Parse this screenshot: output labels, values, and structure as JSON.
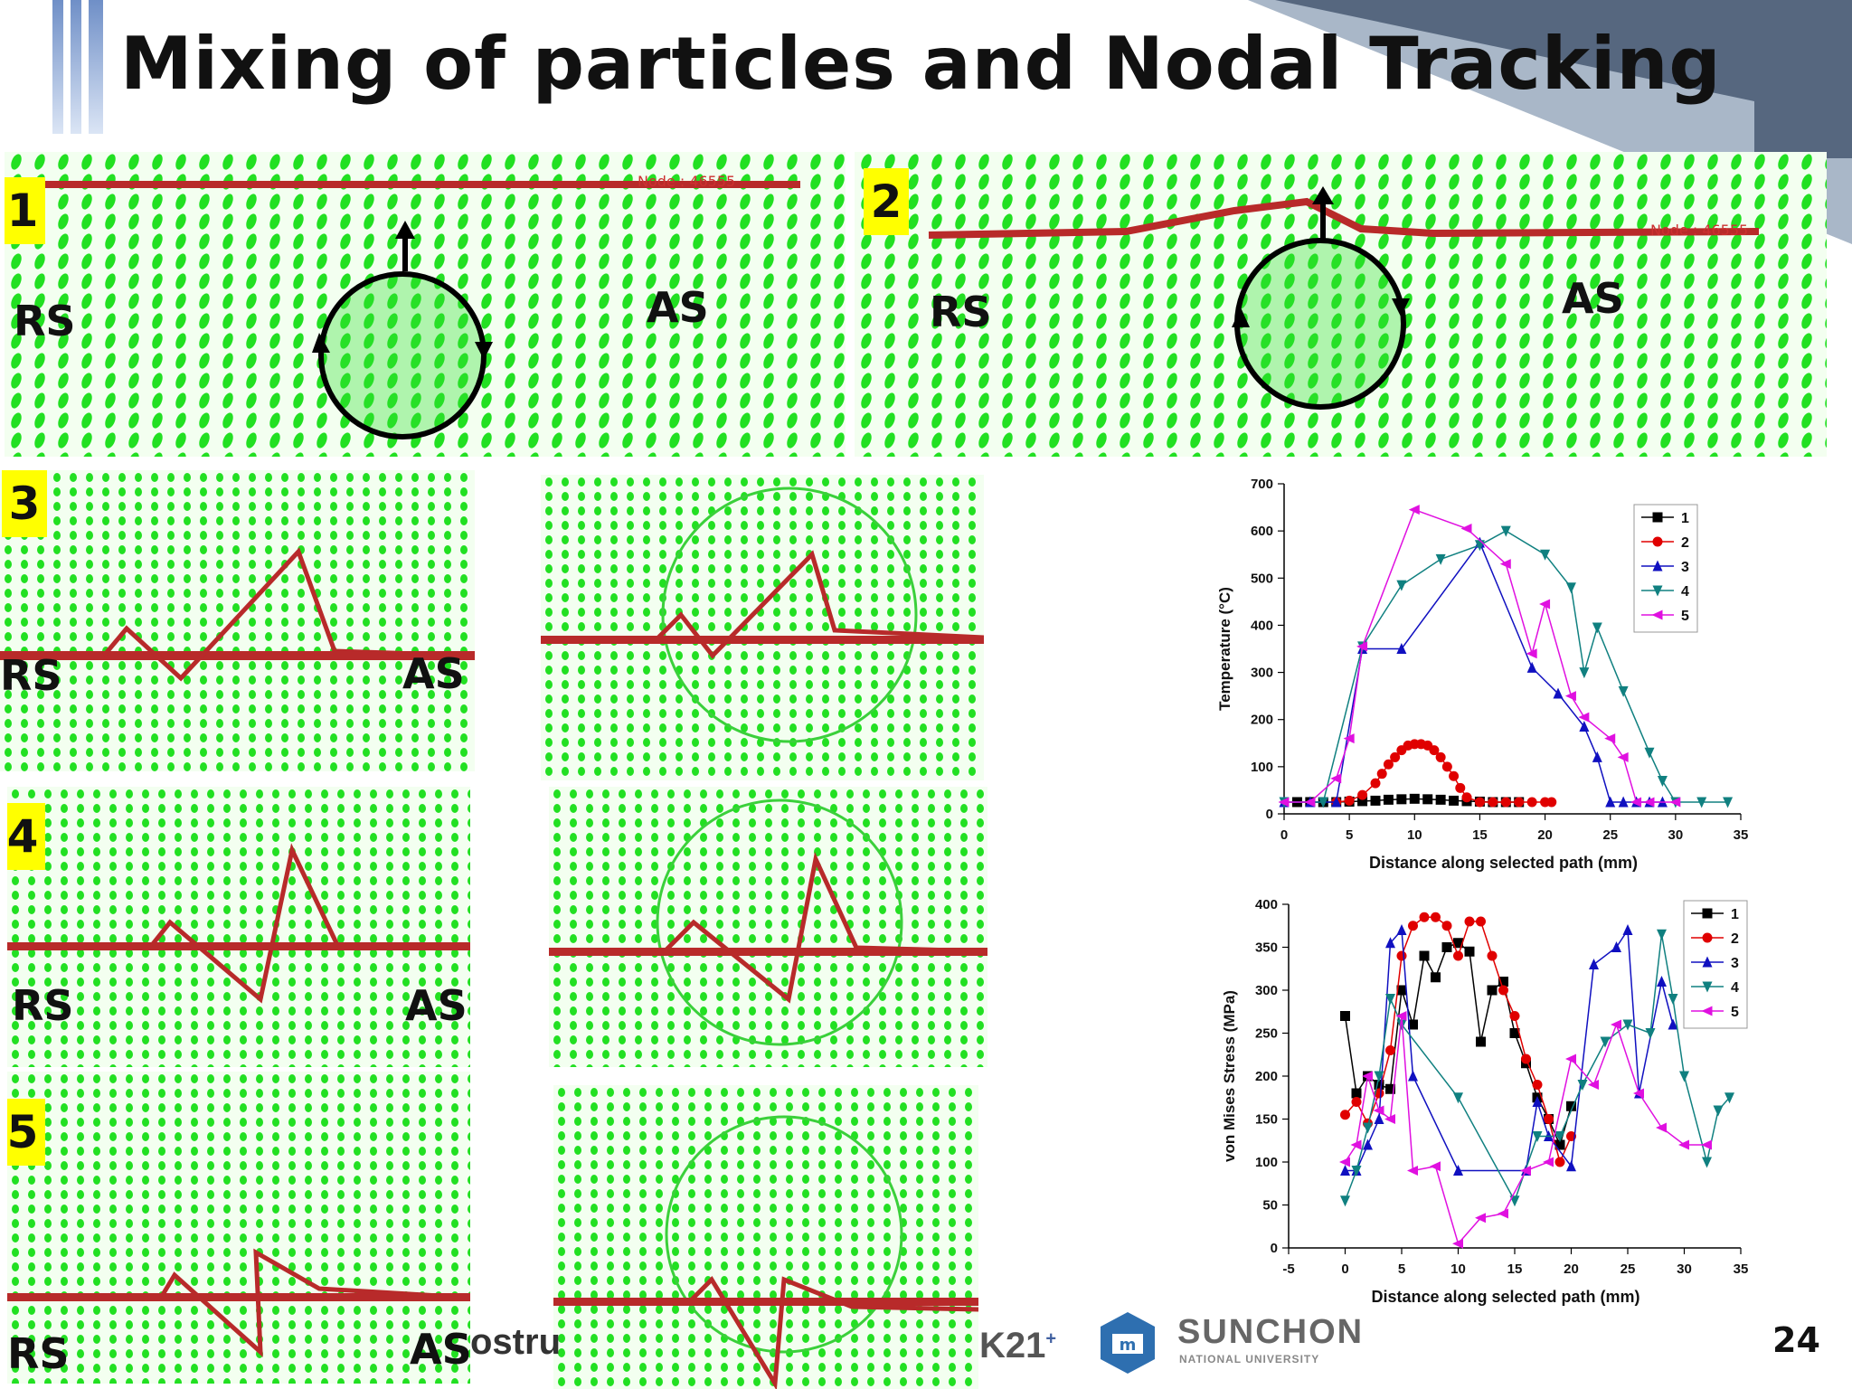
{
  "slide": {
    "title": "Mixing of particles and Nodal Tracking",
    "page_number": "24"
  },
  "panels": {
    "p1": {
      "badge": "1",
      "rs": "RS",
      "as": "AS",
      "node_text": "Node : 46555"
    },
    "p2": {
      "badge": "2",
      "rs": "RS",
      "as": "AS",
      "node_text": "Node : 46555"
    },
    "p3": {
      "badge": "3",
      "rs": "RS",
      "as": "AS"
    },
    "p4": {
      "badge": "4",
      "rs": "RS",
      "as": "AS"
    },
    "p5": {
      "badge": "5",
      "rs": "RS",
      "as": "AS"
    }
  },
  "footer": {
    "partial_text": "ostru",
    "bk21": "K21",
    "univ_name": "SUNCHON",
    "univ_sub": "NATIONAL UNIVERSITY"
  },
  "chart_data": [
    {
      "type": "line",
      "xlabel": "Distance along selected path (mm)",
      "ylabel": "Temperature (°C)",
      "xlim": [
        0,
        35
      ],
      "ylim": [
        0,
        700
      ],
      "xticks": [
        0,
        5,
        10,
        15,
        20,
        25,
        30,
        35
      ],
      "yticks": [
        0,
        100,
        200,
        300,
        400,
        500,
        600,
        700
      ],
      "legend_position": "top-right",
      "series": [
        {
          "name": "1",
          "color": "#000000",
          "marker": "square",
          "x": [
            1,
            2,
            3,
            4,
            5,
            6,
            7,
            8,
            9,
            10,
            11,
            12,
            13,
            14,
            15,
            16,
            17,
            18
          ],
          "y": [
            25,
            25,
            25,
            25,
            26,
            27,
            28,
            30,
            31,
            32,
            31,
            30,
            28,
            27,
            26,
            25,
            25,
            25
          ]
        },
        {
          "name": "2",
          "color": "#e00000",
          "marker": "circle",
          "x": [
            4,
            5,
            6,
            7,
            7.5,
            8,
            8.5,
            9,
            9.5,
            10,
            10.5,
            11,
            11.5,
            12,
            12.5,
            13,
            13.5,
            14,
            15,
            16,
            17,
            18,
            19,
            20,
            20.5
          ],
          "y": [
            25,
            28,
            40,
            65,
            85,
            105,
            120,
            135,
            145,
            148,
            148,
            145,
            135,
            120,
            100,
            80,
            55,
            35,
            25,
            25,
            25,
            25,
            25,
            25,
            25
          ]
        },
        {
          "name": "3",
          "color": "#1010c0",
          "marker": "triangle-up",
          "x": [
            0,
            2,
            4,
            6,
            9,
            15,
            19,
            21,
            23,
            24,
            25,
            26,
            27,
            28,
            29
          ],
          "y": [
            25,
            25,
            25,
            350,
            350,
            575,
            310,
            255,
            185,
            120,
            25,
            25,
            25,
            25,
            25
          ]
        },
        {
          "name": "4",
          "color": "#108080",
          "marker": "triangle-down",
          "x": [
            0,
            3,
            6,
            9,
            12,
            15,
            17,
            20,
            22,
            23,
            24,
            26,
            28,
            29,
            30,
            32,
            34
          ],
          "y": [
            25,
            25,
            355,
            485,
            540,
            570,
            600,
            550,
            480,
            300,
            395,
            260,
            130,
            70,
            25,
            25,
            25
          ]
        },
        {
          "name": "5",
          "color": "#e010e0",
          "marker": "triangle-left",
          "x": [
            0,
            2,
            4,
            5,
            6,
            10,
            14,
            17,
            19,
            20,
            22,
            23,
            25,
            26,
            27,
            28,
            30
          ],
          "y": [
            25,
            25,
            75,
            160,
            355,
            645,
            605,
            530,
            340,
            445,
            250,
            205,
            160,
            120,
            25,
            25,
            25
          ]
        }
      ]
    },
    {
      "type": "line",
      "xlabel": "Distance along selected path (mm)",
      "ylabel": "von Mises Stress (MPa)",
      "xlim": [
        -5,
        35
      ],
      "ylim": [
        0,
        400
      ],
      "xticks": [
        -5,
        0,
        5,
        10,
        15,
        20,
        25,
        30,
        35
      ],
      "yticks": [
        0,
        50,
        100,
        150,
        200,
        250,
        300,
        350,
        400
      ],
      "legend_position": "top-right",
      "series": [
        {
          "name": "1",
          "color": "#000000",
          "marker": "square",
          "x": [
            0,
            1,
            2,
            3,
            4,
            5,
            6,
            7,
            8,
            9,
            10,
            11,
            12,
            13,
            14,
            15,
            16,
            17,
            18,
            19,
            20
          ],
          "y": [
            270,
            180,
            200,
            190,
            185,
            300,
            260,
            340,
            315,
            350,
            355,
            345,
            240,
            300,
            310,
            250,
            215,
            175,
            150,
            120,
            165
          ]
        },
        {
          "name": "2",
          "color": "#e00000",
          "marker": "circle",
          "x": [
            0,
            1,
            2,
            3,
            4,
            5,
            6,
            7,
            8,
            9,
            10,
            11,
            12,
            13,
            14,
            15,
            16,
            17,
            18,
            19,
            20
          ],
          "y": [
            155,
            170,
            145,
            180,
            230,
            340,
            375,
            385,
            385,
            375,
            340,
            380,
            380,
            340,
            300,
            270,
            220,
            190,
            150,
            100,
            130
          ]
        },
        {
          "name": "3",
          "color": "#1010c0",
          "marker": "triangle-up",
          "x": [
            0,
            1,
            2,
            3,
            4,
            5,
            6,
            10,
            16,
            17,
            18,
            20,
            22,
            24,
            25,
            26,
            28,
            29
          ],
          "y": [
            90,
            90,
            120,
            150,
            355,
            370,
            200,
            90,
            90,
            170,
            130,
            95,
            330,
            350,
            370,
            180,
            310,
            260
          ]
        },
        {
          "name": "4",
          "color": "#108080",
          "marker": "triangle-down",
          "x": [
            0,
            1,
            2,
            3,
            4,
            5,
            10,
            15,
            17,
            19,
            21,
            23,
            25,
            27,
            28,
            29,
            30,
            32,
            33,
            34
          ],
          "y": [
            55,
            90,
            140,
            200,
            290,
            260,
            175,
            55,
            130,
            130,
            190,
            240,
            260,
            250,
            365,
            290,
            200,
            100,
            160,
            175
          ]
        },
        {
          "name": "5",
          "color": "#e010e0",
          "marker": "triangle-left",
          "x": [
            0,
            1,
            2,
            3,
            4,
            5,
            6,
            8,
            10,
            12,
            14,
            16,
            18,
            20,
            22,
            24,
            26,
            28,
            30,
            32
          ],
          "y": [
            100,
            120,
            200,
            160,
            150,
            270,
            90,
            95,
            5,
            35,
            40,
            90,
            100,
            220,
            190,
            260,
            180,
            140,
            120,
            120
          ]
        }
      ]
    }
  ]
}
